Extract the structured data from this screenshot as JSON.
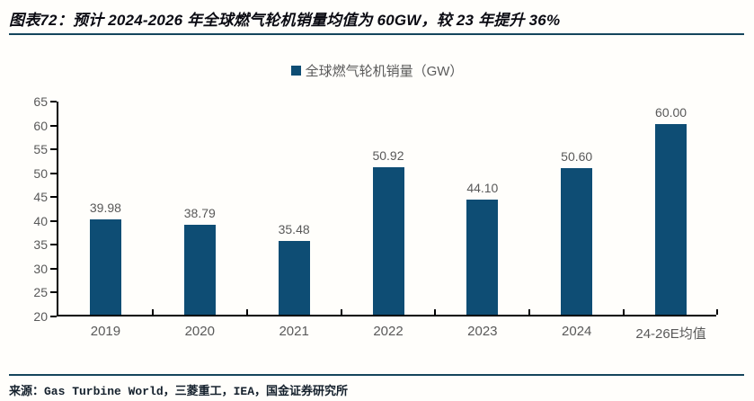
{
  "header": {
    "title": "图表72：预计 2024-2026 年全球燃气轮机销量均值为 60GW，较 23 年提升 36%"
  },
  "chart_data": {
    "type": "bar",
    "title": "",
    "legend": "全球燃气轮机销量（GW）",
    "categories": [
      "2019",
      "2020",
      "2021",
      "2022",
      "2023",
      "2024",
      "24-26E均值"
    ],
    "values": [
      39.98,
      38.79,
      35.48,
      50.92,
      44.1,
      50.6,
      60.0
    ],
    "value_labels": [
      "39.98",
      "38.79",
      "35.48",
      "50.92",
      "44.10",
      "50.60",
      "60.00"
    ],
    "xlabel": "",
    "ylabel": "",
    "ylim": [
      20,
      65
    ],
    "ytick_step": 5,
    "grid": false,
    "legend_position": "top-center",
    "bar_color": "#0e4d74",
    "axis_color": "#000000",
    "tick_label_color": "#595959",
    "value_label_color": "#595959"
  },
  "footer": {
    "source": "来源：Gas Turbine World，三菱重工，IEA，国金证券研究所"
  },
  "colors": {
    "accent_bar": "#0e4d74",
    "divider_rule": "#14455c",
    "background": "#ffffff",
    "title_text": "#0a0a12"
  }
}
